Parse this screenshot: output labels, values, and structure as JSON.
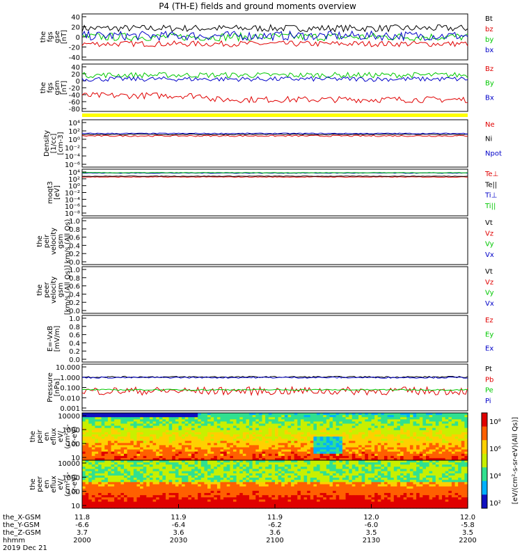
{
  "title": "P4 (TH-E) fields and ground moments overview",
  "chart_data": [
    {
      "id": "fgs_gse",
      "type": "line",
      "ylabel": [
        "the",
        "fgs",
        "gse",
        "[nT]"
      ],
      "yticks": [
        "40",
        "20",
        "0",
        "-20",
        "-40"
      ],
      "ylim": [
        -40,
        40
      ],
      "series": [
        {
          "name": "Bt",
          "color": "#000000",
          "level": 15,
          "amp": 6
        },
        {
          "name": "bz",
          "color": "#e00000",
          "level": -12,
          "amp": 5
        },
        {
          "name": "by",
          "color": "#00c800",
          "level": 0,
          "amp": 7
        },
        {
          "name": "bx",
          "color": "#0000c8",
          "level": 2,
          "amp": 8
        }
      ]
    },
    {
      "id": "fgs_gsm",
      "type": "line",
      "ylabel": [
        "the",
        "fgs",
        "gsm",
        "[nT]"
      ],
      "yticks": [
        "40",
        "20",
        "0",
        "-20",
        "-40",
        "-60",
        "-80"
      ],
      "ylim": [
        -80,
        40
      ],
      "series": [
        {
          "name": "Bz",
          "color": "#e00000",
          "level": -50,
          "amp": 8
        },
        {
          "name": "By",
          "color": "#00c800",
          "level": 12,
          "amp": 7
        },
        {
          "name": "Bx",
          "color": "#0000c8",
          "level": 2,
          "amp": 6
        }
      ]
    },
    {
      "id": "density",
      "type": "line",
      "scale": "log",
      "ylabel": [
        "Density",
        "[1/cc]",
        "[cm-3]"
      ],
      "yticks": [
        "10⁴",
        "10²",
        "10⁰",
        "10⁻²",
        "10⁻⁴",
        "10⁻⁶"
      ],
      "ylim": [
        -6,
        4
      ],
      "series": [
        {
          "name": "Ne",
          "color": "#e00000",
          "level": 0.6,
          "amp": 0.15
        },
        {
          "name": "Ni",
          "color": "#000000",
          "level": 0.9,
          "amp": 0.1
        },
        {
          "name": "Npot",
          "color": "#0000c8",
          "level": 1.1,
          "amp": 0.1
        }
      ]
    },
    {
      "id": "temperature",
      "type": "line",
      "scale": "log",
      "ylabel": [
        "moqt3",
        "[eV]"
      ],
      "yticks": [
        "10⁴",
        "10²",
        "10⁰",
        "10⁻²",
        "10⁻⁴",
        "10⁻⁶",
        "10⁻⁸"
      ],
      "ylim": [
        -8,
        4
      ],
      "series": [
        {
          "name": "Te⊥",
          "color": "#e00000",
          "level": 2.0,
          "amp": 0.08
        },
        {
          "name": "Te||",
          "color": "#000000",
          "level": 2.2,
          "amp": 0.06
        },
        {
          "name": "Ti⊥",
          "color": "#0000c8",
          "level": 3.0,
          "amp": 0.08
        },
        {
          "name": "Ti||",
          "color": "#00c800",
          "level": 3.1,
          "amp": 0.06
        }
      ]
    },
    {
      "id": "peir_velocity",
      "type": "line",
      "ylabel": [
        "the",
        "peir",
        "velocity",
        "gsm",
        "km/s (All Qs)"
      ],
      "yticks": [
        "1.0",
        "0.8",
        "0.6",
        "0.4",
        "0.2",
        "0.0"
      ],
      "ylim": [
        0,
        1
      ],
      "series": [
        {
          "name": "Vt",
          "color": "#000000"
        },
        {
          "name": "Vz",
          "color": "#e00000"
        },
        {
          "name": "Vy",
          "color": "#00c800"
        },
        {
          "name": "Vx",
          "color": "#0000c8"
        }
      ]
    },
    {
      "id": "peer_velocity",
      "type": "line",
      "ylabel": [
        "the",
        "peer",
        "velocity",
        "gsm",
        "[km/s (All Qs)]"
      ],
      "yticks": [
        "1.0",
        "0.8",
        "0.6",
        "0.4",
        "0.2",
        "0.0"
      ],
      "ylim": [
        0,
        1
      ],
      "series": [
        {
          "name": "Vt",
          "color": "#000000"
        },
        {
          "name": "Vz",
          "color": "#e00000"
        },
        {
          "name": "Vy",
          "color": "#00c800"
        },
        {
          "name": "Vx",
          "color": "#0000c8"
        }
      ]
    },
    {
      "id": "efield",
      "type": "line",
      "ylabel": [
        "E=-VxB",
        "[mV/m]"
      ],
      "yticks": [
        "1.0",
        "0.8",
        "0.6",
        "0.4",
        "0.2",
        "0.0"
      ],
      "ylim": [
        0,
        1
      ],
      "series": [
        {
          "name": "Ez",
          "color": "#e00000"
        },
        {
          "name": "Ey",
          "color": "#00c800"
        },
        {
          "name": "Ex",
          "color": "#0000c8"
        }
      ]
    },
    {
      "id": "pressure",
      "type": "line",
      "scale": "log",
      "ylabel": [
        "Pressure",
        "[nPa]"
      ],
      "yticks": [
        "10.000",
        "1.000",
        "0.100",
        "0.010",
        "0.001"
      ],
      "ylim": [
        -3,
        1
      ],
      "series": [
        {
          "name": "Pt",
          "color": "#000000",
          "level": -0.1,
          "amp": 0.06
        },
        {
          "name": "Pb",
          "color": "#e00000",
          "level": -1.3,
          "amp": 0.35
        },
        {
          "name": "Pe",
          "color": "#00c800",
          "level": -1.2,
          "amp": 0.05
        },
        {
          "name": "Pi",
          "color": "#0000c8",
          "level": -0.15,
          "amp": 0.06
        }
      ]
    },
    {
      "id": "peir_spectrogram",
      "type": "heatmap",
      "ylabel": [
        "the",
        "peir",
        "en",
        "eflux",
        "eV/",
        "(cm²-s-",
        "sr-eV)"
      ],
      "yticks": [
        "10000",
        "1000",
        "100",
        "10"
      ],
      "ylim": [
        5,
        20000
      ]
    },
    {
      "id": "peer_spectrogram",
      "type": "heatmap",
      "ylabel": [
        "the",
        "peer",
        "en",
        "eflux",
        "eV/",
        "(cm²-s-",
        "sr-eV)"
      ],
      "yticks": [
        "10000",
        "1000",
        "100",
        "10"
      ],
      "ylim": [
        5,
        20000
      ]
    }
  ],
  "colorbar": {
    "ticks": [
      "10⁸",
      "10⁶",
      "10⁴",
      "10²"
    ],
    "label": "[eV/(cm²-s-sr-eV)(All Qs)]"
  },
  "x_axis": {
    "row_labels": [
      "the_X-GSM",
      "the_Y-GSM",
      "the_Z-GSM",
      "hhmm",
      "2019 Dec 21"
    ],
    "ticks": [
      {
        "x_gsm": "11.8",
        "y_gsm": "-6.6",
        "z_gsm": "3.7",
        "hhmm": "2000"
      },
      {
        "x_gsm": "11.9",
        "y_gsm": "-6.4",
        "z_gsm": "3.6",
        "hhmm": "2030"
      },
      {
        "x_gsm": "11.9",
        "y_gsm": "-6.2",
        "z_gsm": "3.6",
        "hhmm": "2100"
      },
      {
        "x_gsm": "12.0",
        "y_gsm": "-6.0",
        "z_gsm": "3.5",
        "hhmm": "2130"
      },
      {
        "x_gsm": "12.0",
        "y_gsm": "-5.8",
        "z_gsm": "3.5",
        "hhmm": "2200"
      }
    ]
  }
}
